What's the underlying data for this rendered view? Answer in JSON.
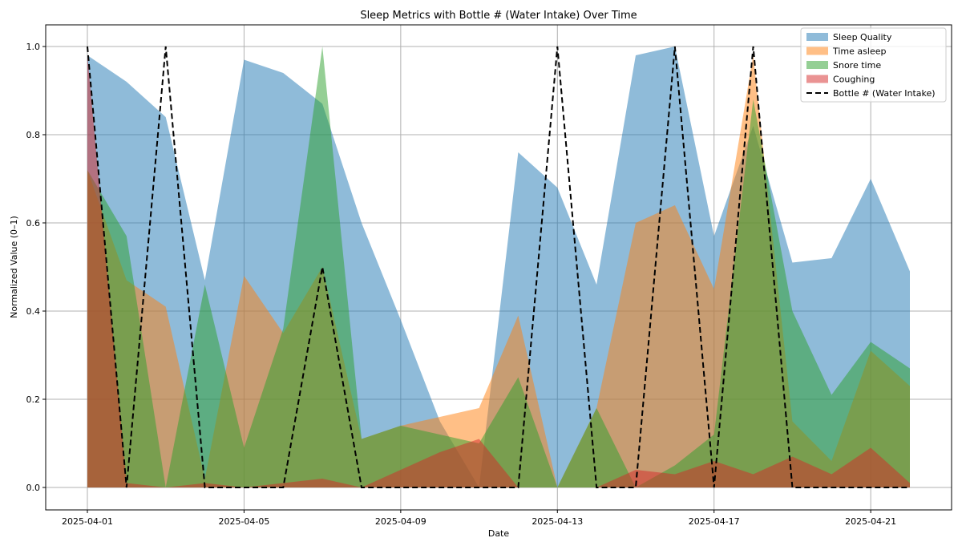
{
  "chart_data": {
    "type": "area",
    "title": "Sleep Metrics with Bottle # (Water Intake) Over Time",
    "xlabel": "Date",
    "ylabel": "Normalized Value (0–1)",
    "x": [
      "2025-04-01",
      "2025-04-02",
      "2025-04-03",
      "2025-04-04",
      "2025-04-05",
      "2025-04-06",
      "2025-04-07",
      "2025-04-08",
      "2025-04-09",
      "2025-04-10",
      "2025-04-11",
      "2025-04-12",
      "2025-04-13",
      "2025-04-14",
      "2025-04-15",
      "2025-04-16",
      "2025-04-17",
      "2025-04-18",
      "2025-04-19",
      "2025-04-20",
      "2025-04-21",
      "2025-04-22"
    ],
    "xticks": [
      "2025-04-01",
      "2025-04-05",
      "2025-04-09",
      "2025-04-13",
      "2025-04-17",
      "2025-04-21"
    ],
    "yticks": [
      "0.0",
      "0.2",
      "0.4",
      "0.6",
      "0.8",
      "1.0"
    ],
    "ylim": [
      0,
      1.0
    ],
    "grid": true,
    "legend_position": "top-right",
    "series": [
      {
        "name": "Sleep Quality",
        "kind": "area",
        "color": "#1f77b4",
        "opacity": 0.5,
        "values": [
          0.98,
          0.92,
          0.84,
          0.47,
          0.97,
          0.94,
          0.87,
          0.6,
          0.38,
          0.15,
          0.0,
          0.76,
          0.68,
          0.46,
          0.98,
          1.0,
          0.57,
          0.82,
          0.51,
          0.52,
          0.7,
          0.49
        ]
      },
      {
        "name": "Time asleep",
        "kind": "area",
        "color": "#ff7f0e",
        "opacity": 0.5,
        "values": [
          0.72,
          0.47,
          0.41,
          0.02,
          0.48,
          0.35,
          0.5,
          0.11,
          0.14,
          0.16,
          0.18,
          0.39,
          0.0,
          0.18,
          0.6,
          0.64,
          0.45,
          0.98,
          0.15,
          0.06,
          0.31,
          0.23
        ]
      },
      {
        "name": "Snore time",
        "kind": "area",
        "color": "#2ca02c",
        "opacity": 0.5,
        "values": [
          0.72,
          0.57,
          0.0,
          0.46,
          0.09,
          0.36,
          1.0,
          0.11,
          0.14,
          0.12,
          0.1,
          0.25,
          0.0,
          0.18,
          0.0,
          0.05,
          0.12,
          0.88,
          0.4,
          0.21,
          0.33,
          0.27
        ]
      },
      {
        "name": "Coughing",
        "kind": "area",
        "color": "#d62728",
        "opacity": 0.5,
        "values": [
          0.98,
          0.01,
          0.0,
          0.01,
          0.0,
          0.01,
          0.02,
          0.0,
          0.04,
          0.08,
          0.11,
          0.0,
          0.0,
          0.0,
          0.04,
          0.03,
          0.06,
          0.03,
          0.07,
          0.03,
          0.09,
          0.01
        ]
      },
      {
        "name": "Bottle # (Water Intake)",
        "kind": "line",
        "style": "dashed",
        "color": "#000000",
        "values": [
          1.0,
          0.0,
          1.0,
          0.0,
          0.0,
          0.0,
          0.5,
          0.0,
          0.0,
          0.0,
          0.0,
          0.0,
          1.0,
          0.0,
          0.0,
          1.0,
          0.0,
          1.0,
          0.0,
          0.0,
          0.0,
          0.0
        ]
      }
    ]
  }
}
